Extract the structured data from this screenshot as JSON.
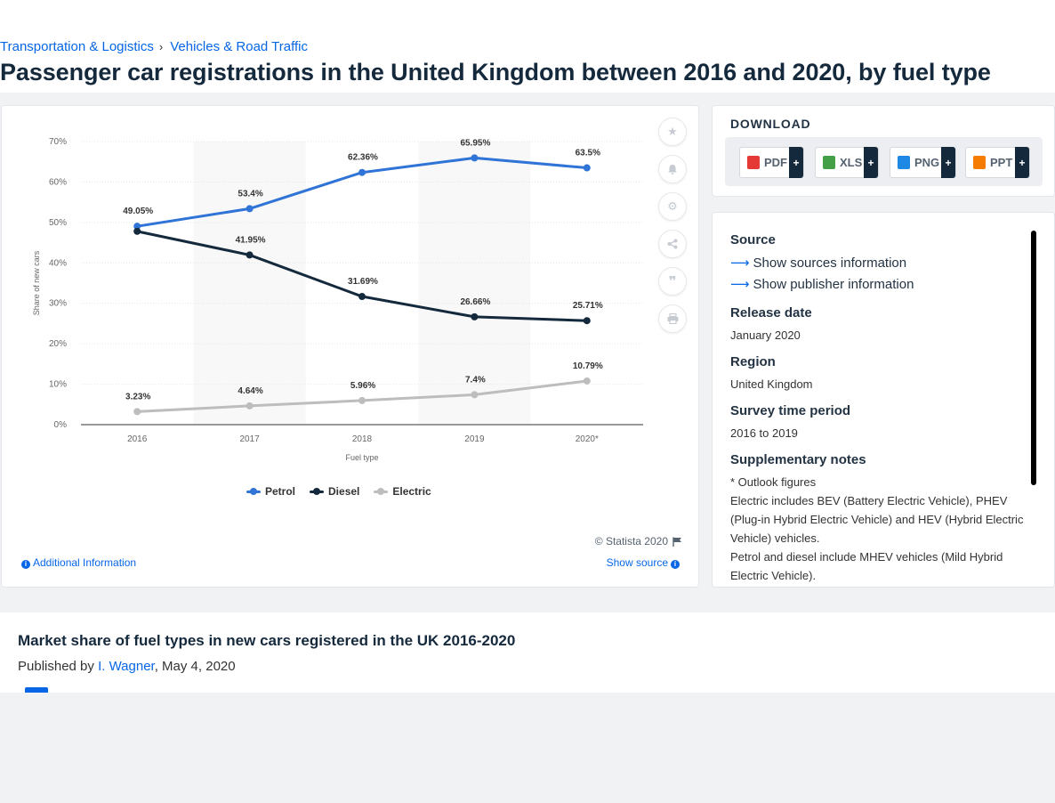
{
  "breadcrumb": {
    "items": [
      "Transportation & Logistics",
      "Vehicles & Road Traffic"
    ]
  },
  "page_title": "Passenger car registrations in the United Kingdom between 2016 and 2020, by fuel type",
  "chart_data": {
    "type": "line",
    "title": "",
    "xlabel": "Fuel type",
    "ylabel": "Share of new cars",
    "categories": [
      "2016",
      "2017",
      "2018",
      "2019",
      "2020*"
    ],
    "ylim": [
      0,
      70
    ],
    "yticks": [
      "0%",
      "10%",
      "20%",
      "30%",
      "40%",
      "50%",
      "60%",
      "70%"
    ],
    "series": [
      {
        "name": "Petrol",
        "color": "#2f74d6",
        "values": [
          49.05,
          53.4,
          62.36,
          65.95,
          63.5
        ],
        "labels": [
          "49.05%",
          "53.4%",
          "62.36%",
          "65.95%",
          "63.5%"
        ]
      },
      {
        "name": "Diesel",
        "color": "#15293d",
        "values": [
          47.8,
          41.95,
          31.69,
          26.66,
          25.71
        ],
        "labels": [
          "",
          "41.95%",
          "31.69%",
          "26.66%",
          "25.71%"
        ]
      },
      {
        "name": "Electric",
        "color": "#bdbdbd",
        "values": [
          3.23,
          4.64,
          5.96,
          7.4,
          10.79
        ],
        "labels": [
          "3.23%",
          "4.64%",
          "5.96%",
          "7.4%",
          "10.79%"
        ]
      }
    ],
    "grid": true,
    "legend_position": "bottom"
  },
  "chart_footer": {
    "copyright": "© Statista 2020",
    "additional_info": "Additional Information",
    "show_source": "Show source"
  },
  "tools": [
    "star-icon",
    "bell-icon",
    "gear-icon",
    "share-icon",
    "quote-icon",
    "print-icon"
  ],
  "download": {
    "title": "DOWNLOAD",
    "buttons": [
      {
        "label": "PDF",
        "color": "#e53935"
      },
      {
        "label": "XLS",
        "color": "#43a047"
      },
      {
        "label": "PNG",
        "color": "#1e88e5"
      },
      {
        "label": "PPT",
        "color": "#f57c00"
      }
    ],
    "plus": "+"
  },
  "details": {
    "source_heading": "Source",
    "sources_link": "Show sources information",
    "publisher_link": "Show publisher information",
    "release_heading": "Release date",
    "release_value": "January 2020",
    "region_heading": "Region",
    "region_value": "United Kingdom",
    "survey_heading": "Survey time period",
    "survey_value": "2016 to 2019",
    "notes_heading": "Supplementary notes",
    "notes_1": "* Outlook figures",
    "notes_2": "Electric includes BEV (Battery Electric Vehicle), PHEV (Plug-in Hybrid Electric Vehicle) and HEV (Hybrid Electric Vehicle) vehicles.",
    "notes_3": "Petrol and diesel include MHEV vehicles (Mild Hybrid Electric Vehicle)."
  },
  "description": {
    "title": "Market share of fuel types in new cars registered in the UK 2016-2020",
    "published_prefix": "Published by",
    "author": "I. Wagner",
    "date": ", May 4, 2020"
  }
}
